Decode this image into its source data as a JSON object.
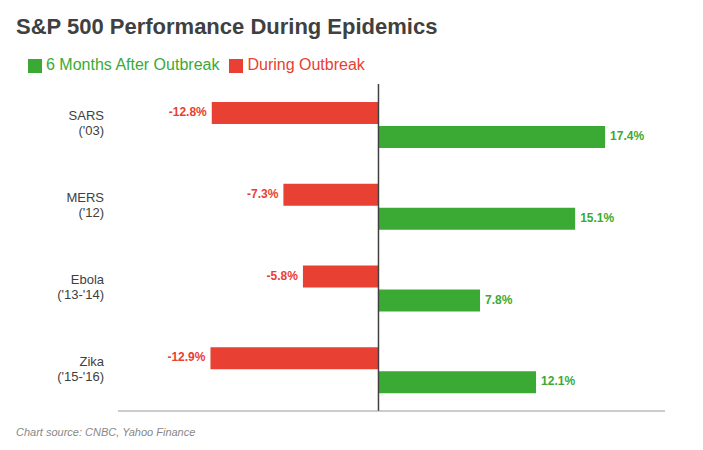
{
  "chart_data": {
    "type": "bar",
    "orientation": "horizontal",
    "title": "S&P 500 Performance During Epidemics",
    "categories": [
      "SARS\n('03)",
      "MERS\n('12)",
      "Ebola\n('13-'14)",
      "Zika\n('15-'16)"
    ],
    "series": [
      {
        "name": "During Outbreak",
        "color": "#e84032",
        "values": [
          -12.8,
          -7.3,
          -5.8,
          -12.9
        ],
        "value_labels": [
          "-12.8%",
          "-7.3%",
          "-5.8%",
          "-12.9%"
        ]
      },
      {
        "name": "6 Months After Outbreak",
        "color": "#3aaa35",
        "values": [
          17.4,
          15.1,
          7.8,
          12.1
        ],
        "value_labels": [
          "17.4%",
          "15.1%",
          "7.8%",
          "12.1%"
        ]
      }
    ],
    "xlim": [
      -20,
      22
    ],
    "tick_labels": "y",
    "grid": false,
    "data_labels": true,
    "legend": "upper left",
    "annotations": [
      "Chart source: CNBC, Yahoo Finance"
    ]
  }
}
